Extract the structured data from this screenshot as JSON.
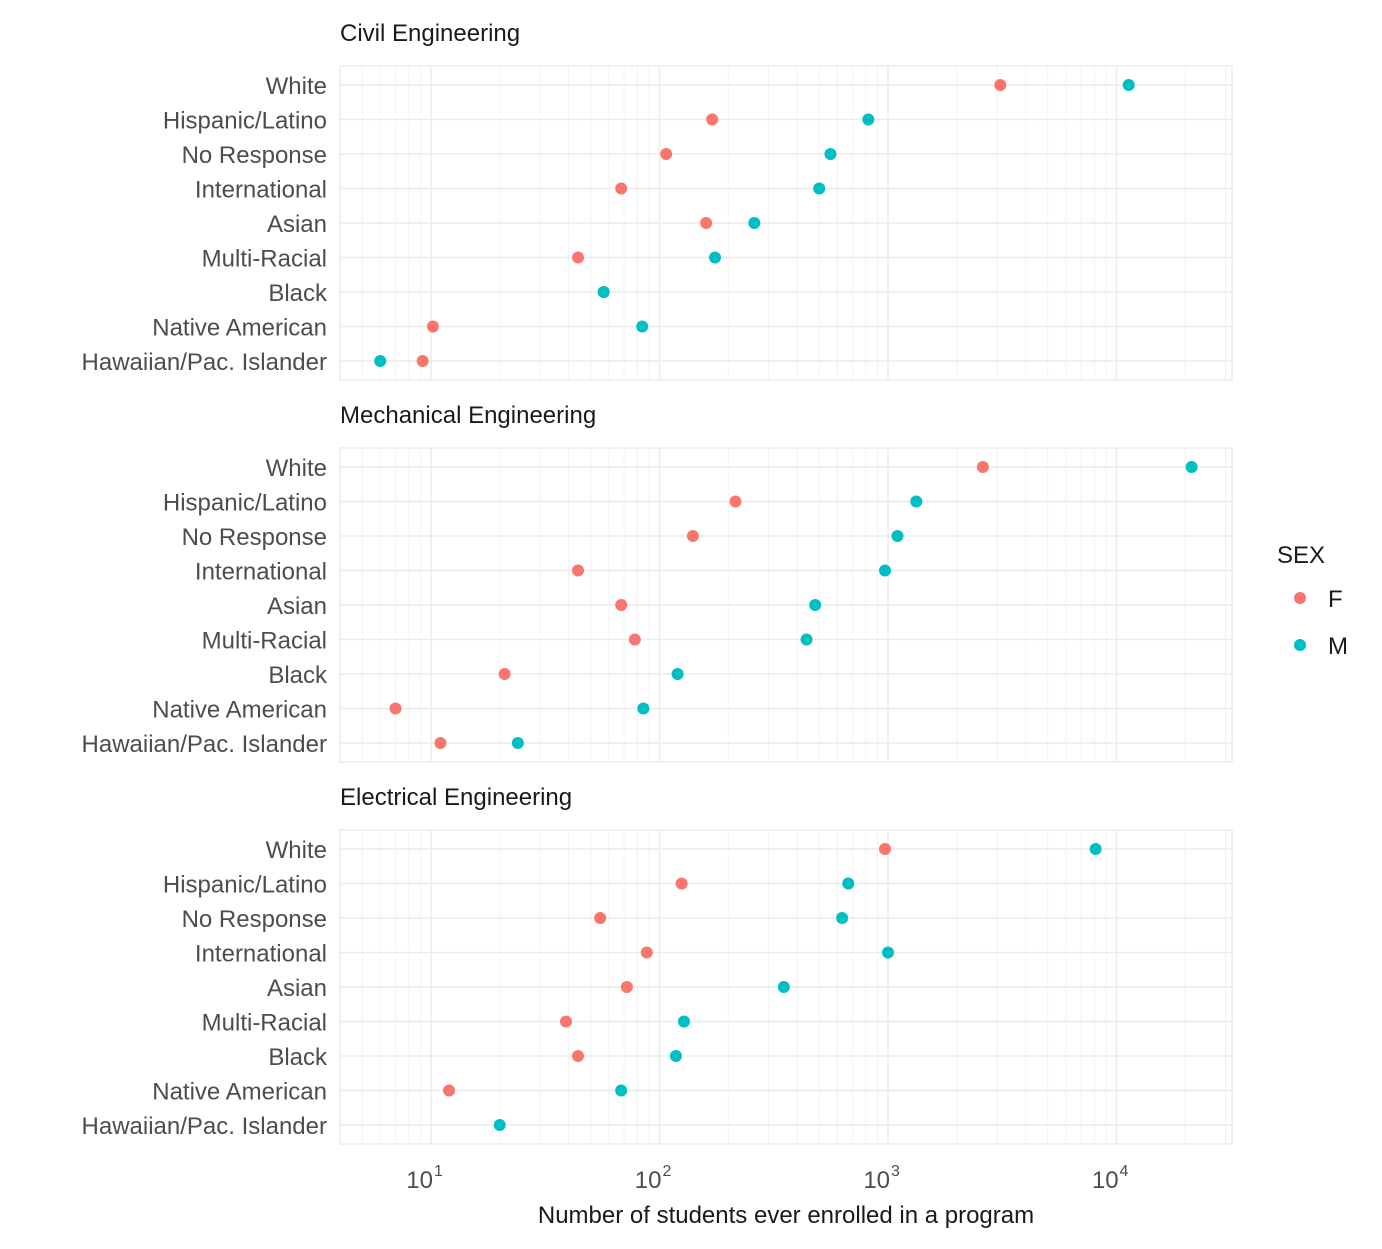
{
  "chart_data": {
    "type": "scatter",
    "xlabel": "Number of students ever enrolled in a program",
    "x_scale": "log10",
    "xlim": [
      4,
      32000
    ],
    "x_ticks": [
      {
        "value": 10,
        "base": "10",
        "exp": "1"
      },
      {
        "value": 100,
        "base": "10",
        "exp": "2"
      },
      {
        "value": 1000,
        "base": "10",
        "exp": "3"
      },
      {
        "value": 10000,
        "base": "10",
        "exp": "4"
      }
    ],
    "categories": [
      "White",
      "Hispanic/Latino",
      "No Response",
      "International",
      "Asian",
      "Multi-Racial",
      "Black",
      "Native American",
      "Hawaiian/Pac. Islander"
    ],
    "legend": {
      "title": "SEX",
      "position": "right",
      "entries": [
        {
          "name": "F",
          "color": "#F8766D"
        },
        {
          "name": "M",
          "color": "#00BFC4"
        }
      ]
    },
    "panels": [
      {
        "title": "Civil Engineering",
        "series": [
          {
            "name": "F",
            "values": [
              3100,
              170,
              107,
              68,
              160,
              44,
              57,
              10.2,
              9.2
            ]
          },
          {
            "name": "M",
            "values": [
              11300,
              820,
              560,
              500,
              260,
              175,
              57,
              84,
              6
            ]
          }
        ]
      },
      {
        "title": "Mechanical Engineering",
        "series": [
          {
            "name": "F",
            "values": [
              2600,
              215,
              140,
              44,
              68,
              78,
              21,
              7,
              11
            ]
          },
          {
            "name": "M",
            "values": [
              21300,
              1330,
              1100,
              970,
              480,
              440,
              120,
              85,
              24
            ]
          }
        ]
      },
      {
        "title": "Electrical Engineering",
        "series": [
          {
            "name": "F",
            "values": [
              970,
              125,
              55,
              88,
              72,
              39,
              44,
              12,
              null
            ]
          },
          {
            "name": "M",
            "values": [
              8100,
              670,
              630,
              1000,
              350,
              128,
              118,
              68,
              20
            ]
          }
        ]
      }
    ]
  }
}
